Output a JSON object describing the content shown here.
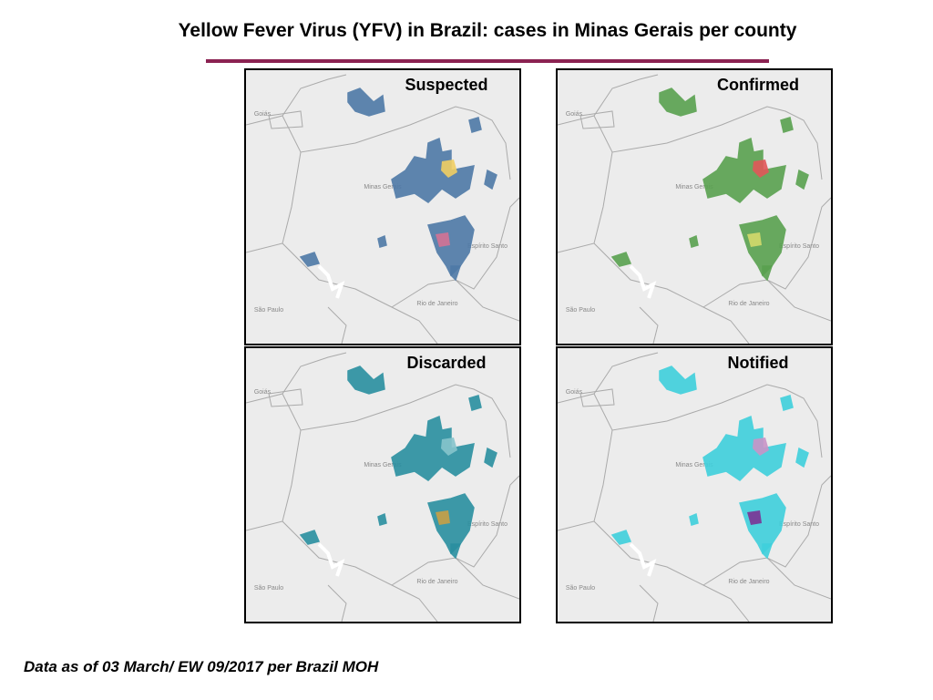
{
  "header": {
    "title": "Yellow Fever Virus (YFV) in Brazil: cases in Minas Gerais per county"
  },
  "panels": [
    {
      "label": "Suspected",
      "color": "#4e79a7",
      "highlight": [
        "#f1ce63",
        "#d37295"
      ]
    },
    {
      "label": "Confirmed",
      "color": "#59a14f",
      "highlight": [
        "#e15759",
        "#d4d96b"
      ]
    },
    {
      "label": "Discarded",
      "color": "#2a8fa0",
      "highlight": [
        "#86c4cc",
        "#c8a046"
      ]
    },
    {
      "label": "Notified",
      "color": "#3fd0dc",
      "highlight": [
        "#c994c7",
        "#7b3294"
      ]
    }
  ],
  "places": [
    "Minas Gerais",
    "Espírito Santo",
    "Rio de Janeiro",
    "São Paulo",
    "Goiás"
  ],
  "footer": {
    "note": "Data as of 03 March/ EW 09/2017 per Brazil MOH"
  }
}
